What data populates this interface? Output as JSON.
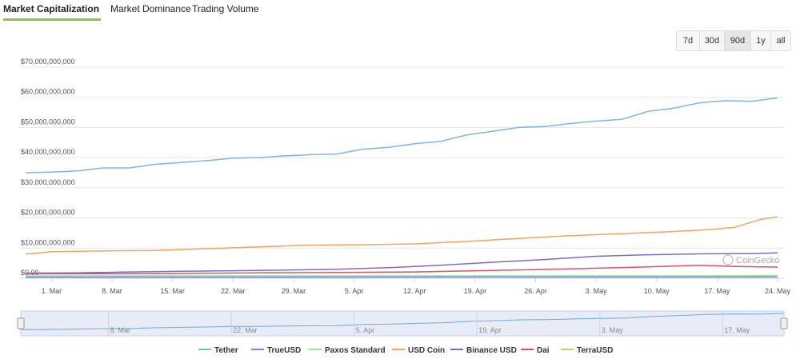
{
  "tabs": [
    {
      "label": "Market Capitalization",
      "active": true
    },
    {
      "label": "Market Dominance",
      "active": false
    },
    {
      "label": "Trading Volume",
      "active": false
    }
  ],
  "ranges": [
    {
      "label": "7d",
      "active": false
    },
    {
      "label": "30d",
      "active": false
    },
    {
      "label": "90d",
      "active": true
    },
    {
      "label": "1y",
      "active": false
    },
    {
      "label": "all",
      "active": false
    }
  ],
  "watermark": "CoinGecko",
  "navigator_labels": [
    "8. Mar",
    "22. Mar",
    "5. Apr",
    "19. Apr",
    "3. May",
    "17. May"
  ],
  "chart_data": {
    "type": "line",
    "ylim": [
      0,
      70000000000
    ],
    "ytick_labels": [
      "$0.00",
      "$10,000,000,000",
      "$20,000,000,000",
      "$30,000,000,000",
      "$40,000,000,000",
      "$50,000,000,000",
      "$60,000,000,000",
      "$70,000,000,000"
    ],
    "ytick_values": [
      0,
      10000000000,
      20000000000,
      30000000000,
      40000000000,
      50000000000,
      60000000000,
      70000000000
    ],
    "x_start_day": -3,
    "x_end_day": 84,
    "xtick_labels": [
      "1. Mar",
      "8. Mar",
      "15. Mar",
      "22. Mar",
      "29. Mar",
      "5. Apr",
      "12. Apr",
      "19. Apr",
      "26. Apr",
      "3. May",
      "10. May",
      "17. May",
      "24. May"
    ],
    "xtick_days": [
      0,
      7,
      14,
      21,
      28,
      35,
      42,
      49,
      56,
      63,
      70,
      77,
      84
    ],
    "legend_position": "bottom",
    "series": [
      {
        "name": "Tether",
        "color": "#7cb5ec",
        "x": [
          -3,
          0,
          3,
          6,
          9,
          12,
          15,
          18,
          21,
          24,
          27,
          30,
          33,
          36,
          39,
          42,
          45,
          48,
          51,
          54,
          57,
          60,
          63,
          66,
          69,
          72,
          75,
          78,
          81,
          84
        ],
        "y": [
          35000000000,
          35200000000,
          35600000000,
          36600000000,
          36600000000,
          37800000000,
          38400000000,
          39000000000,
          39800000000,
          40000000000,
          40600000000,
          41000000000,
          41200000000,
          42800000000,
          43400000000,
          44600000000,
          45400000000,
          47500000000,
          48700000000,
          50000000000,
          50300000000,
          51300000000,
          52100000000,
          52700000000,
          55300000000,
          56400000000,
          58200000000,
          58900000000,
          58700000000,
          59800000000
        ]
      },
      {
        "name": "TrueUSD",
        "color": "#8085e9",
        "x": [
          -3,
          12,
          27,
          42,
          57,
          72,
          84
        ],
        "y": [
          400000000,
          400000000,
          400000000,
          400000000,
          400000000,
          400000000,
          400000000
        ]
      },
      {
        "name": "Paxos Standard",
        "color": "#90ed7d",
        "x": [
          -3,
          12,
          27,
          42,
          57,
          72,
          84
        ],
        "y": [
          800000000,
          800000000,
          800000000,
          800000000,
          800000000,
          800000000,
          800000000
        ]
      },
      {
        "name": "USD Coin",
        "color": "#f7a35c",
        "x": [
          -3,
          0,
          6,
          12,
          18,
          24,
          30,
          36,
          42,
          48,
          54,
          60,
          66,
          72,
          76,
          79,
          82,
          84
        ],
        "y": [
          8000000000,
          8800000000,
          9100000000,
          9200000000,
          9800000000,
          10400000000,
          11000000000,
          11100000000,
          11400000000,
          12200000000,
          13200000000,
          14100000000,
          14800000000,
          15500000000,
          16100000000,
          16900000000,
          19500000000,
          20400000000
        ]
      },
      {
        "name": "Binance USD",
        "color": "#7f6bcc",
        "x": [
          -3,
          3,
          9,
          15,
          21,
          27,
          33,
          39,
          45,
          51,
          57,
          63,
          69,
          75,
          81,
          84
        ],
        "y": [
          1700000000,
          1800000000,
          2100000000,
          2300000000,
          2500000000,
          2700000000,
          3000000000,
          3500000000,
          4300000000,
          5300000000,
          6200000000,
          7300000000,
          7800000000,
          8100000000,
          8200000000,
          8400000000
        ]
      },
      {
        "name": "Dai",
        "color": "#e0506e",
        "x": [
          -3,
          6,
          15,
          24,
          33,
          42,
          51,
          60,
          69,
          75,
          79,
          84
        ],
        "y": [
          1500000000,
          1500000000,
          1600000000,
          1800000000,
          1900000000,
          2100000000,
          2600000000,
          3100000000,
          3800000000,
          4300000000,
          3900000000,
          3700000000
        ]
      },
      {
        "name": "TerraUSD",
        "color": "#c0d855",
        "x": [
          -3,
          12,
          27,
          42,
          57,
          72,
          84
        ],
        "y": [
          200000000,
          250000000,
          300000000,
          400000000,
          500000000,
          700000000,
          900000000
        ]
      }
    ]
  }
}
